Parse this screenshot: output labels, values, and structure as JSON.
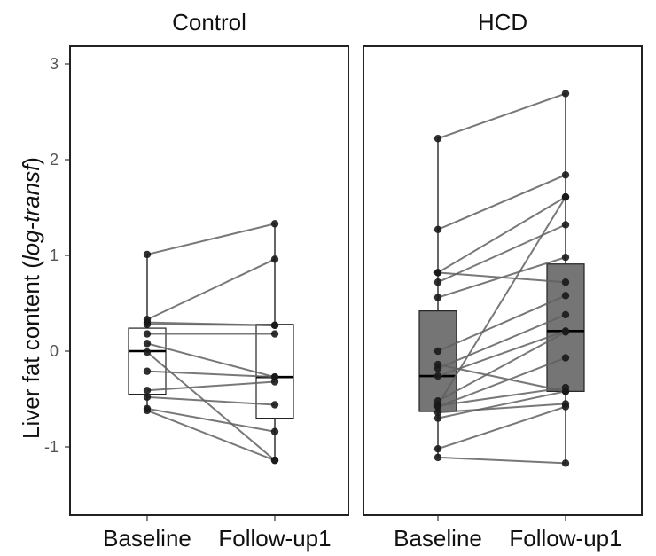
{
  "chart_data": {
    "type": "box",
    "ylabel": {
      "prefix": "Liver fat content (",
      "italic": "log-transf",
      "suffix": ")"
    },
    "ylim": [
      -1.75,
      3.2
    ],
    "yticks": [
      "-1",
      "0",
      "1",
      "2",
      "3"
    ],
    "categories": [
      "Baseline",
      "Follow-up1"
    ],
    "colors": {
      "Control": "#ffffff",
      "HCD": "#757575",
      "line": "#606060",
      "point": "#1a1a1a"
    },
    "panels": [
      {
        "title": "Control",
        "boxes": [
          {
            "category": "Baseline",
            "whisker_low": -0.62,
            "q1": -0.45,
            "median": 0.0,
            "q3": 0.24,
            "whisker_high": 1.01
          },
          {
            "category": "Follow-up1",
            "whisker_low": -1.14,
            "q1": -0.7,
            "median": -0.27,
            "q3": 0.28,
            "whisker_high": 1.33
          }
        ],
        "pairs": [
          [
            1.01,
            1.33
          ],
          [
            0.33,
            0.96
          ],
          [
            0.3,
            0.27
          ],
          [
            0.28,
            0.27
          ],
          [
            0.18,
            0.18
          ],
          [
            0.08,
            -0.27
          ],
          [
            -0.21,
            -0.27
          ],
          [
            -0.41,
            -0.32
          ],
          [
            -0.48,
            -0.56
          ],
          [
            -0.6,
            -0.84
          ],
          [
            -0.62,
            -1.14
          ],
          [
            -0.01,
            -1.14
          ]
        ]
      },
      {
        "title": "HCD",
        "boxes": [
          {
            "category": "Baseline",
            "whisker_low": -1.11,
            "q1": -0.63,
            "median": -0.26,
            "q3": 0.42,
            "whisker_high": 2.22
          },
          {
            "category": "Follow-up1",
            "whisker_low": -1.17,
            "q1": -0.42,
            "median": 0.21,
            "q3": 0.91,
            "whisker_high": 2.69
          }
        ],
        "pairs": [
          [
            2.22,
            2.69
          ],
          [
            1.27,
            1.84
          ],
          [
            0.82,
            1.61
          ],
          [
            0.72,
            1.32
          ],
          [
            0.56,
            0.98
          ],
          [
            0.82,
            0.72
          ],
          [
            0.0,
            0.58
          ],
          [
            -0.18,
            0.38
          ],
          [
            -0.26,
            0.21
          ],
          [
            -0.52,
            0.2
          ],
          [
            -0.58,
            -0.07
          ],
          [
            -0.57,
            -0.38
          ],
          [
            -0.7,
            -0.42
          ],
          [
            -0.64,
            -0.55
          ],
          [
            -1.02,
            -0.58
          ],
          [
            -1.11,
            -1.17
          ],
          [
            -0.14,
            -0.42
          ],
          [
            -0.56,
            1.61
          ]
        ]
      }
    ]
  }
}
